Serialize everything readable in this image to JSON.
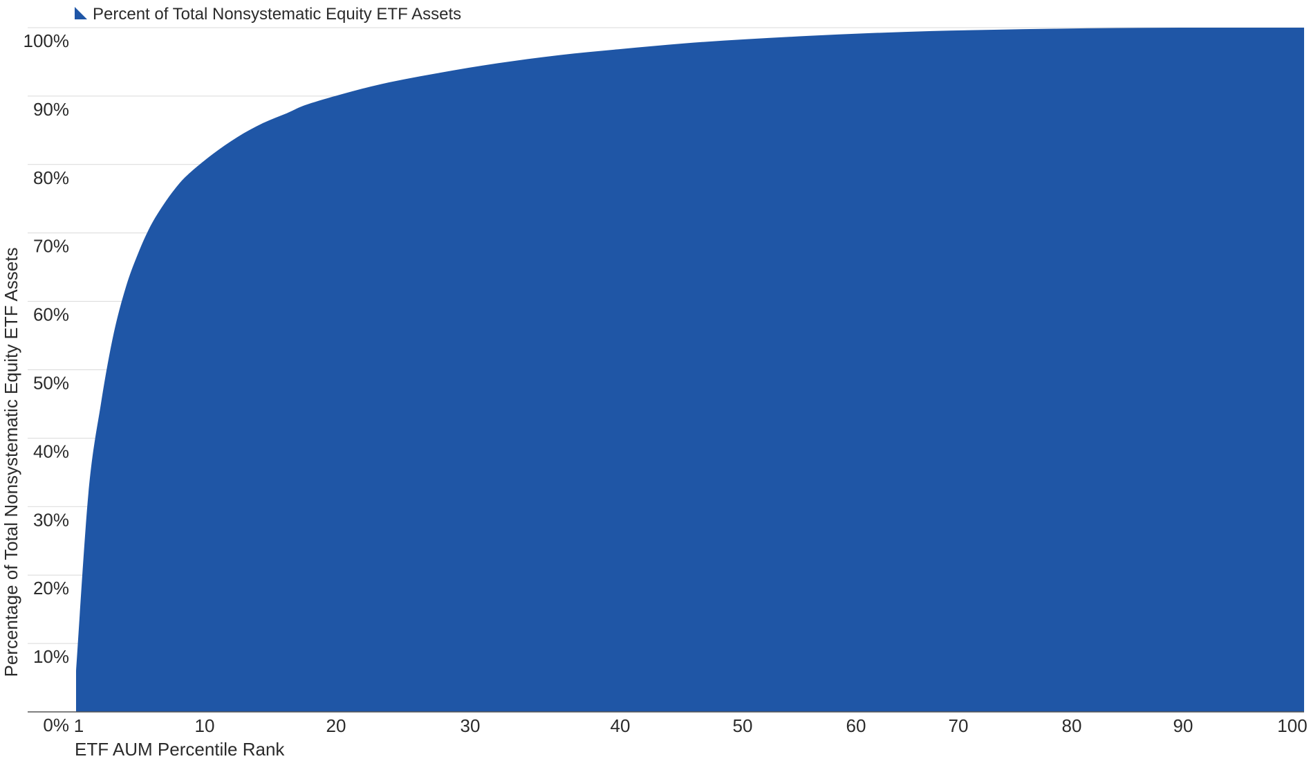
{
  "chart_data": {
    "type": "area",
    "legend": {
      "label": "Percent of Total Nonsystematic Equity ETF Assets",
      "placement": "top-left",
      "color": "#1f56a6"
    },
    "xlabel": "ETF AUM Percentile Rank",
    "ylabel": "Percentage of Total Nonsystematic Equity ETF Assets",
    "x_ticks": [
      "1",
      "10",
      "20",
      "30",
      "40",
      "50",
      "60",
      "70",
      "80",
      "90",
      "100"
    ],
    "y_ticks": [
      "0%",
      "10%",
      "20%",
      "30%",
      "40%",
      "50%",
      "60%",
      "70%",
      "80%",
      "90%",
      "100%"
    ],
    "ylim": [
      0,
      100
    ],
    "xlim": [
      1,
      100
    ],
    "grid": true,
    "series": [
      {
        "name": "Percent of Total Nonsystematic Equity ETF Assets",
        "color": "#1f56a6",
        "x": [
          1,
          2,
          3,
          4,
          5,
          6,
          7,
          8,
          9,
          10,
          12,
          14,
          16,
          18,
          20,
          25,
          30,
          35,
          40,
          45,
          50,
          55,
          60,
          65,
          70,
          75,
          80,
          85,
          90,
          95,
          100
        ],
        "values": [
          6,
          32,
          45,
          55,
          62,
          67,
          71,
          74,
          76.5,
          78.5,
          81.5,
          84,
          86,
          87.5,
          89,
          91.5,
          93.3,
          94.8,
          96,
          96.9,
          97.7,
          98.3,
          98.8,
          99.2,
          99.5,
          99.7,
          99.85,
          99.95,
          100,
          100,
          100
        ]
      }
    ]
  }
}
